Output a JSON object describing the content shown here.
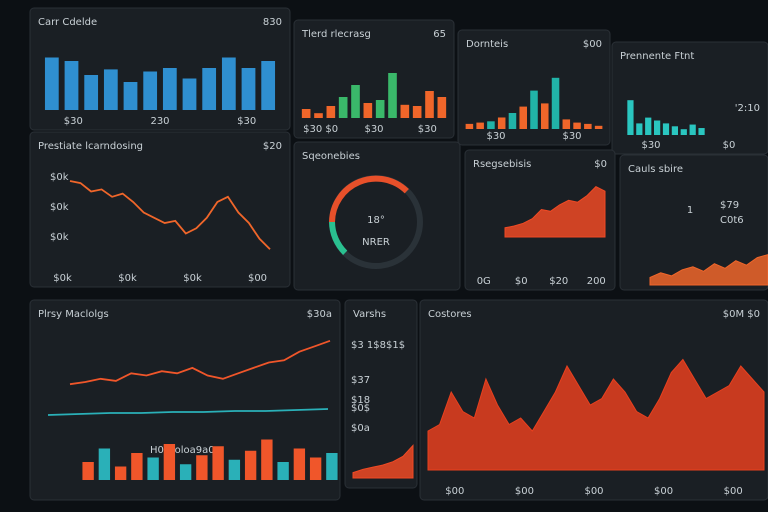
{
  "panels": [
    {
      "title": "Carr Cdelde",
      "badge": "830",
      "labels": [
        "$30",
        "230",
        "$30"
      ],
      "charts": [
        {
          "kind": "bar",
          "ylim": [
            0,
            100
          ],
          "color": "#2f8fd0",
          "values": [
            75,
            70,
            50,
            58,
            40,
            55,
            60,
            45,
            60,
            75,
            60,
            70
          ]
        }
      ]
    },
    {
      "title": "Tlerd rlecrasg",
      "badge": "65",
      "labels": [
        "$30 $0",
        "$30",
        "$30"
      ],
      "charts": [
        {
          "kind": "bar",
          "ylim": [
            0,
            100
          ],
          "colors": [
            "#f0662a",
            "#f0662a",
            "#f0662a",
            "#3ab86a",
            "#3ab86a",
            "#f0662a",
            "#3ab86a",
            "#3ab86a",
            "#f0662a",
            "#f0662a",
            "#f0662a",
            "#f0662a"
          ],
          "values": [
            15,
            8,
            20,
            35,
            55,
            25,
            30,
            75,
            22,
            20,
            45,
            35
          ]
        }
      ]
    },
    {
      "title": "Dornteis",
      "badge": "$00",
      "labels": [
        "$30",
        "$30"
      ],
      "charts": [
        {
          "kind": "bar",
          "ylim": [
            0,
            100
          ],
          "colors": [
            "#f0662a",
            "#f0662a",
            "#21b3a8",
            "#f0662a",
            "#21b3a8",
            "#f0662a",
            "#21b3a8",
            "#f0662a",
            "#21b3a8",
            "#f0662a",
            "#f0662a",
            "#f0662a",
            "#f0662a"
          ],
          "values": [
            8,
            10,
            12,
            18,
            25,
            35,
            60,
            40,
            80,
            15,
            10,
            8,
            5
          ]
        }
      ]
    },
    {
      "title": "Prennente Ftnt",
      "badge": "'2:10",
      "labels": [
        "$30",
        "$0"
      ],
      "charts": [
        {
          "kind": "bar",
          "ylim": [
            0,
            100
          ],
          "color": "#2ac6c0",
          "values": [
            60,
            20,
            30,
            25,
            20,
            15,
            10,
            18,
            12
          ]
        }
      ]
    },
    {
      "title": "Prestiate lcarndosing",
      "badge": "$20",
      "extra": [
        "$0k",
        "$0k",
        "$0k"
      ],
      "labels": [
        "$0k",
        "$0k",
        "$0k",
        "$00"
      ],
      "charts": [
        {
          "kind": "line",
          "ylim": [
            0,
            100
          ],
          "color": "#f0662a",
          "values": [
            80,
            78,
            70,
            72,
            65,
            68,
            60,
            50,
            45,
            40,
            42,
            30,
            35,
            45,
            60,
            65,
            50,
            40,
            25,
            15
          ]
        }
      ]
    },
    {
      "title": "Sqeonebies",
      "extra": [
        "18°",
        "NRER"
      ],
      "charts": [
        {
          "kind": "gauge"
        }
      ]
    },
    {
      "title": "Rsegsebisis",
      "badge": "$0",
      "labels": [
        "0G",
        "$0",
        "$20",
        "200"
      ],
      "charts": [
        {
          "kind": "area",
          "ylim": [
            0,
            60
          ],
          "color": "#f04a24",
          "values": [
            10,
            12,
            15,
            20,
            30,
            28,
            35,
            40,
            38,
            45,
            55,
            50
          ]
        }
      ]
    },
    {
      "title": "Cauls sbire",
      "extra": [
        "1",
        "$79",
        "C0t6"
      ],
      "charts": [
        {
          "kind": "area",
          "ylim": [
            0,
            25
          ],
          "color": "#f0662a",
          "values": [
            5,
            8,
            6,
            10,
            12,
            9,
            14,
            11,
            16,
            13,
            18,
            20
          ]
        }
      ]
    },
    {
      "title": "Plrsy Maclolgs",
      "badge": "$30a",
      "extra": [
        "H0 Holoa9a0"
      ],
      "charts": [
        {
          "kind": "line",
          "ylim": [
            30,
            90
          ],
          "color": "#f0562a",
          "values": [
            40,
            42,
            45,
            43,
            50,
            48,
            52,
            50,
            55,
            48,
            45,
            50,
            55,
            60,
            62,
            70,
            75,
            80
          ]
        },
        {
          "kind": "line",
          "ylim": [
            0,
            30
          ],
          "color": "#2ab0b8",
          "values": [
            10,
            11,
            12,
            12,
            13,
            13,
            14,
            14,
            15,
            16
          ]
        },
        {
          "kind": "bar",
          "ylim": [
            0,
            100
          ],
          "colors": [
            "#f0562a",
            "#2ab0b8",
            "#f0562a",
            "#f0562a",
            "#2ab0b8",
            "#f0562a",
            "#2ab0b8",
            "#f0562a",
            "#f0562a",
            "#2ab0b8",
            "#f0562a",
            "#f0562a",
            "#2ab0b8",
            "#f0562a",
            "#f0562a",
            "#2ab0b8"
          ],
          "values": [
            40,
            70,
            30,
            60,
            50,
            80,
            35,
            55,
            75,
            45,
            65,
            90,
            40,
            70,
            50,
            60
          ]
        }
      ]
    },
    {
      "title": "Varshs",
      "extra": [
        "$3 1$8$1$",
        "$37",
        "$0$",
        "$0a",
        "$18"
      ],
      "charts": [
        {
          "kind": "area",
          "ylim": [
            0,
            35
          ],
          "color": "#f04a24",
          "values": [
            5,
            8,
            10,
            12,
            15,
            20,
            30
          ]
        }
      ]
    },
    {
      "title": "Costores",
      "badge": "$0M $0",
      "labels": [
        "$00",
        "$00",
        "$00",
        "$00",
        "$00"
      ],
      "charts": [
        {
          "kind": "area",
          "ylim": [
            0,
            100
          ],
          "color": "#e8401e",
          "values": [
            30,
            35,
            60,
            45,
            40,
            70,
            50,
            35,
            40,
            30,
            45,
            60,
            80,
            65,
            50,
            55,
            70,
            60,
            45,
            40,
            55,
            75,
            85,
            70,
            55,
            60,
            65,
            80,
            70,
            60
          ]
        }
      ]
    }
  ]
}
